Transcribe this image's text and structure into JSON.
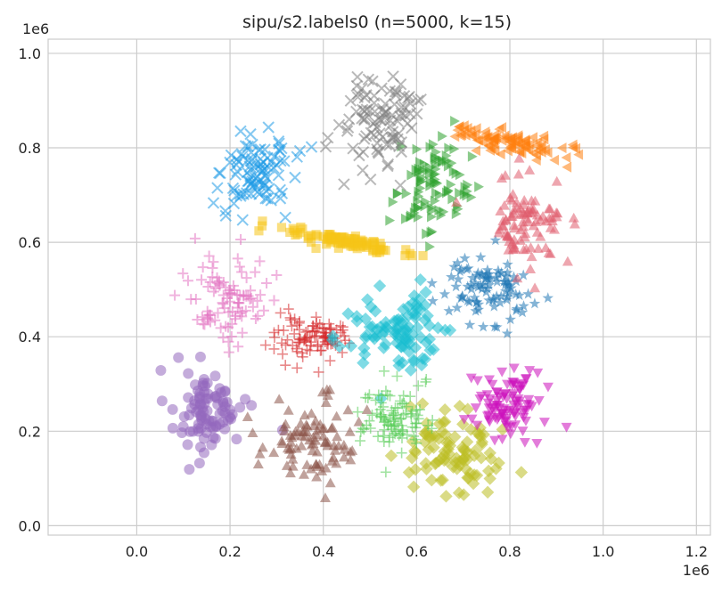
{
  "chart_data": {
    "type": "scatter",
    "title": "sipu/s2.labels0 (n=5000, k=15)",
    "xlabel": "",
    "ylabel": "",
    "x_offset_label": "1e6",
    "y_offset_label": "1e6",
    "xlim": [
      -0.19,
      1.23
    ],
    "ylim": [
      -0.02,
      1.03
    ],
    "x_ticks": [
      0.0,
      0.2,
      0.4,
      0.6,
      0.8,
      1.0,
      1.2
    ],
    "x_tick_labels": [
      "0.0",
      "0.2",
      "0.4",
      "0.6",
      "0.8",
      "1.0",
      "1.2"
    ],
    "y_ticks": [
      0.0,
      0.2,
      0.4,
      0.6,
      0.8,
      1.0
    ],
    "y_tick_labels": [
      "0.0",
      "0.2",
      "0.4",
      "0.6",
      "0.8",
      "1.0"
    ],
    "grid": true,
    "legend": "none",
    "clusters": [
      {
        "cluster": 0,
        "color": "#1f77b4",
        "marker": "star",
        "n": 333,
        "center": [
          0.75,
          0.5
        ],
        "spread": [
          0.045,
          0.035
        ],
        "shape": "blob"
      },
      {
        "cluster": 1,
        "color": "#ff7f0e",
        "marker": "triangle-left",
        "n": 333,
        "center": [
          0.8,
          0.81
        ],
        "spread": [
          0.06,
          0.012
        ],
        "shape": "elongated",
        "angle_deg": -12
      },
      {
        "cluster": 2,
        "color": "#2ca02c",
        "marker": "triangle-right",
        "n": 333,
        "center": [
          0.63,
          0.72
        ],
        "spread": [
          0.04,
          0.045
        ],
        "shape": "blob"
      },
      {
        "cluster": 3,
        "color": "#d62728",
        "marker": "plus-thin",
        "n": 333,
        "center": [
          0.37,
          0.4
        ],
        "spread": [
          0.04,
          0.028
        ],
        "shape": "blob"
      },
      {
        "cluster": 4,
        "color": "#9467bd",
        "marker": "circle",
        "n": 333,
        "center": [
          0.15,
          0.24
        ],
        "spread": [
          0.04,
          0.045
        ],
        "shape": "blob"
      },
      {
        "cluster": 5,
        "color": "#8c564b",
        "marker": "triangle-up",
        "n": 333,
        "center": [
          0.37,
          0.18
        ],
        "spread": [
          0.05,
          0.045
        ],
        "shape": "blob"
      },
      {
        "cluster": 6,
        "color": "#e377c2",
        "marker": "plus",
        "n": 333,
        "center": [
          0.2,
          0.48
        ],
        "spread": [
          0.045,
          0.045
        ],
        "shape": "blob"
      },
      {
        "cluster": 7,
        "color": "#7f7f7f",
        "marker": "x",
        "n": 333,
        "center": [
          0.52,
          0.86
        ],
        "spread": [
          0.045,
          0.045
        ],
        "shape": "blob"
      },
      {
        "cluster": 8,
        "color": "#bcbd22",
        "marker": "diamond",
        "n": 333,
        "center": [
          0.68,
          0.15
        ],
        "spread": [
          0.05,
          0.045
        ],
        "shape": "blob"
      },
      {
        "cluster": 9,
        "color": "#17becf",
        "marker": "diamond",
        "n": 333,
        "center": [
          0.56,
          0.41
        ],
        "spread": [
          0.045,
          0.045
        ],
        "shape": "blob"
      },
      {
        "cluster": 10,
        "color": "#1f9be6",
        "marker": "x",
        "n": 333,
        "center": [
          0.26,
          0.74
        ],
        "spread": [
          0.04,
          0.04
        ],
        "shape": "blob"
      },
      {
        "cluster": 11,
        "color": "#e05c6e",
        "marker": "triangle-up",
        "n": 333,
        "center": [
          0.83,
          0.64
        ],
        "spread": [
          0.04,
          0.045
        ],
        "shape": "blob"
      },
      {
        "cluster": 12,
        "color": "#55cc55",
        "marker": "plus-thin",
        "n": 333,
        "center": [
          0.55,
          0.23
        ],
        "spread": [
          0.035,
          0.035
        ],
        "shape": "blob"
      },
      {
        "cluster": 13,
        "color": "#cc11bb",
        "marker": "triangle-down",
        "n": 333,
        "center": [
          0.8,
          0.26
        ],
        "spread": [
          0.035,
          0.04
        ],
        "shape": "blob"
      },
      {
        "cluster": 14,
        "color": "#f5c518",
        "marker": "square",
        "n": 338,
        "center": [
          0.45,
          0.6
        ],
        "spread": [
          0.008,
          0.065
        ],
        "shape": "elongated",
        "angle_deg": 80
      }
    ]
  }
}
